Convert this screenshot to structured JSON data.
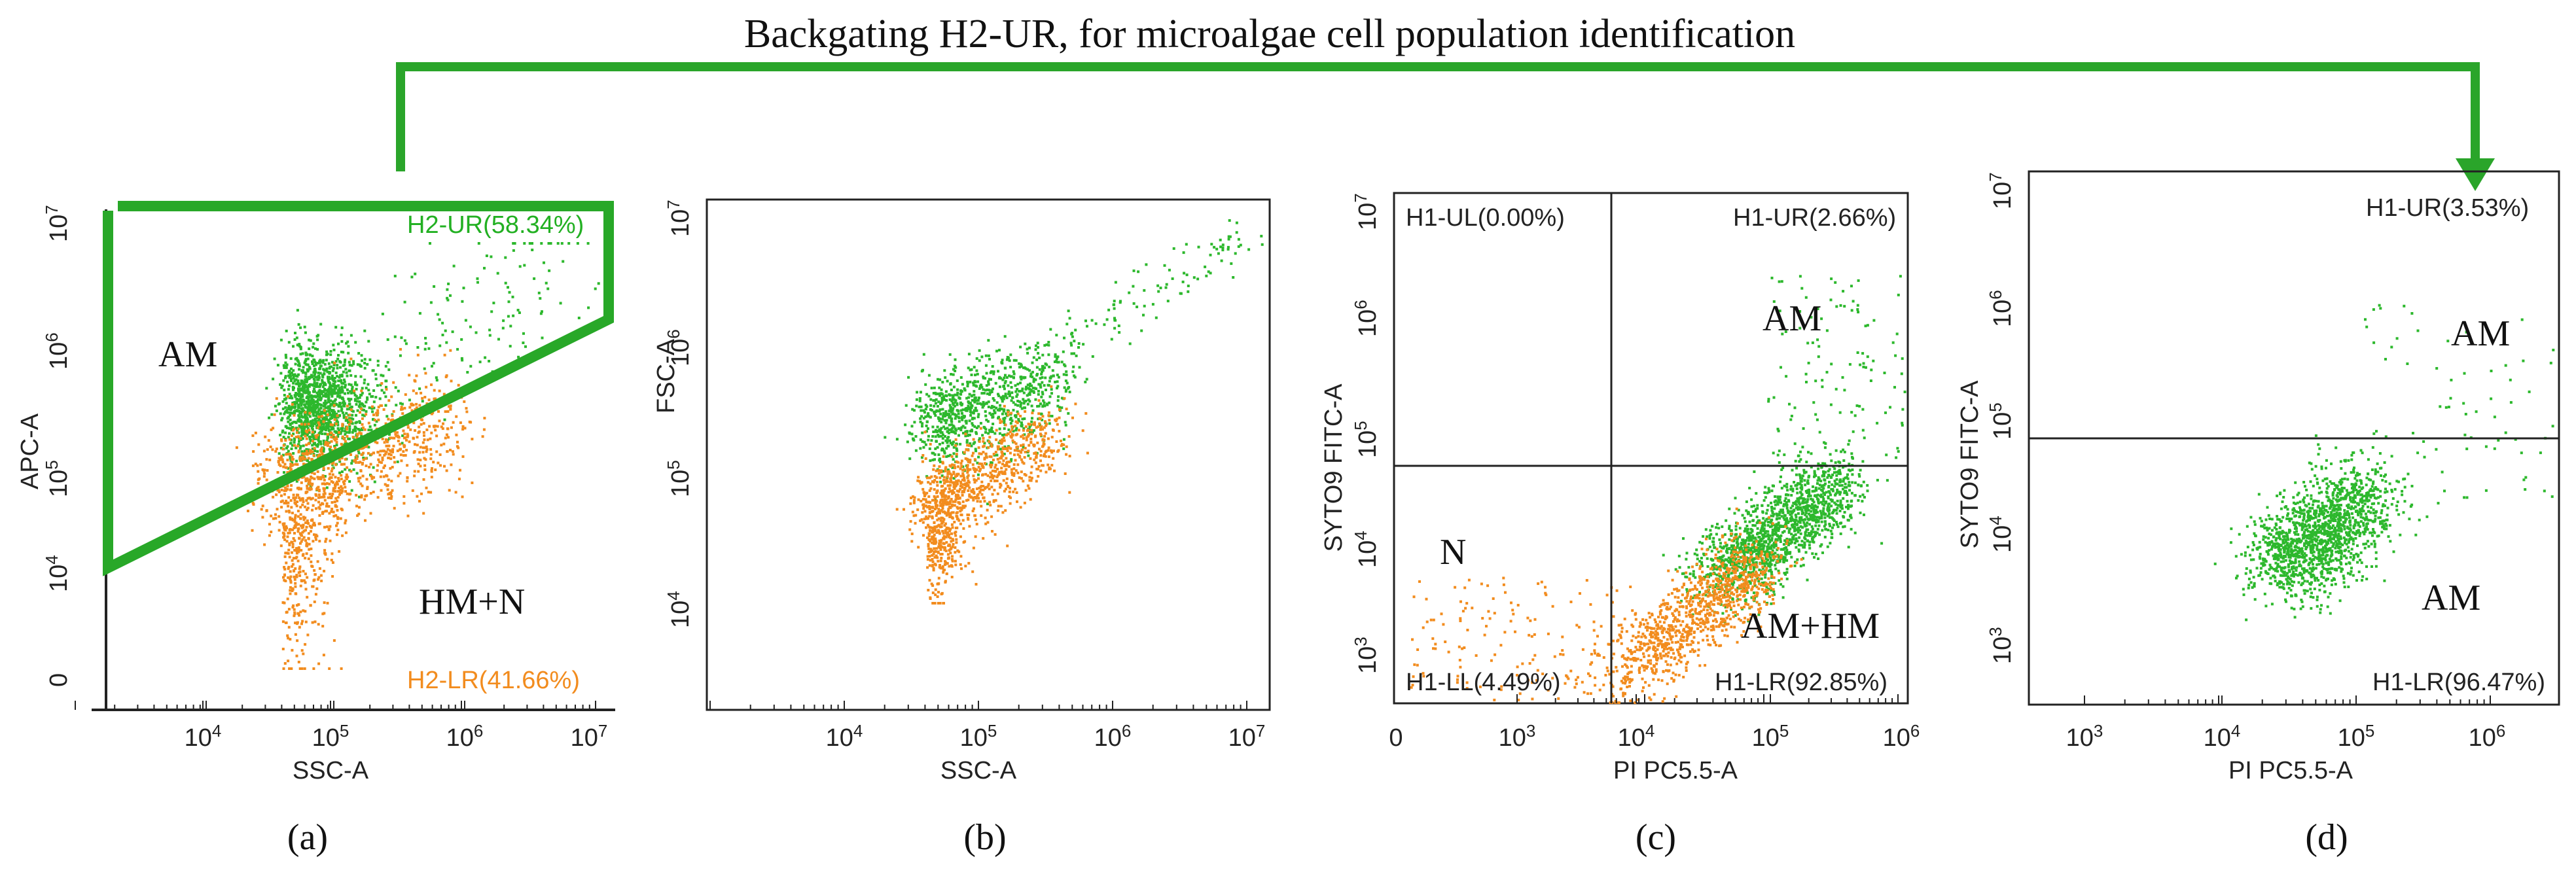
{
  "figure_title": "Backgating H2-UR, for microalgae cell population identification",
  "colors": {
    "green": "#2db82d",
    "orange": "#f28c1e",
    "axis": "#222222",
    "arrow": "#2aa52a"
  },
  "chart_data": [
    {
      "id": "a",
      "type": "scatter",
      "caption": "(a)",
      "xlabel": "SSC-A",
      "ylabel": "APC-A",
      "x_ticks": [
        "10^4",
        "10^5",
        "10^6",
        "10^7"
      ],
      "y_ticks": [
        "0",
        "10^4",
        "10^5",
        "10^6",
        "10^7"
      ],
      "gates": {
        "upper": "H2-UR(58.34%)",
        "lower": "H2-LR(41.66%)"
      },
      "region_labels": [
        "AM",
        "HM+N"
      ],
      "series": [
        {
          "name": "H2-UR",
          "color": "green",
          "percent": 58.34
        },
        {
          "name": "H2-LR",
          "color": "orange",
          "percent": 41.66
        }
      ]
    },
    {
      "id": "b",
      "type": "scatter",
      "caption": "(b)",
      "xlabel": "SSC-A",
      "ylabel": "FSC-A",
      "x_ticks": [
        "10^4",
        "10^5",
        "10^6",
        "10^7"
      ],
      "y_ticks": [
        "10^4",
        "10^5",
        "10^6",
        "10^7"
      ],
      "series": [
        {
          "name": "H2-UR",
          "color": "green"
        },
        {
          "name": "H2-LR",
          "color": "orange"
        }
      ]
    },
    {
      "id": "c",
      "type": "scatter",
      "caption": "(c)",
      "xlabel": "PI PC5.5-A",
      "ylabel": "SYTO9 FITC-A",
      "x_ticks": [
        "0",
        "10^3",
        "10^4",
        "10^5",
        "10^6"
      ],
      "y_ticks": [
        "10^3",
        "10^4",
        "10^5",
        "10^6",
        "10^7"
      ],
      "quadrants": {
        "UL": "H1-UL(0.00%)",
        "UR": "H1-UR(2.66%)",
        "LL": "H1-LL(4.49%)",
        "LR": "H1-LR(92.85%)"
      },
      "quadrant_percent": {
        "UL": 0.0,
        "UR": 2.66,
        "LL": 4.49,
        "LR": 92.85
      },
      "region_labels": [
        "AM",
        "N",
        "AM+HM"
      ]
    },
    {
      "id": "d",
      "type": "scatter",
      "caption": "(d)",
      "xlabel": "PI PC5.5-A",
      "ylabel": "SYTO9 FITC-A",
      "x_ticks": [
        "10^3",
        "10^4",
        "10^5",
        "10^6"
      ],
      "y_ticks": [
        "10^3",
        "10^4",
        "10^5",
        "10^6",
        "10^7"
      ],
      "quadrants": {
        "UR": "H1-UR(3.53%)",
        "LR": "H1-LR(96.47%)"
      },
      "quadrant_percent": {
        "UR": 3.53,
        "LR": 96.47
      },
      "region_labels": [
        "AM",
        "AM"
      ]
    }
  ]
}
